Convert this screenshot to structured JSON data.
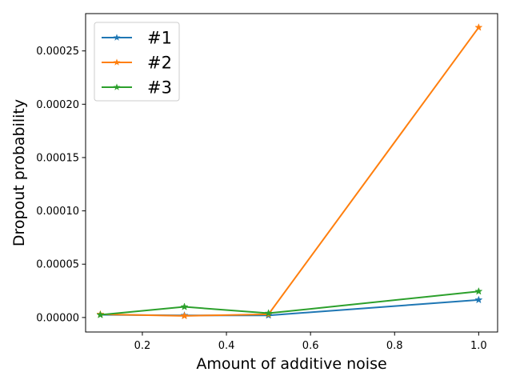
{
  "chart_data": {
    "type": "line",
    "xlabel": "Amount of additive noise",
    "ylabel": "Dropout probability",
    "xlim": [
      0.065,
      1.045
    ],
    "ylim": [
      -1.36e-05,
      0.000285
    ],
    "xticks": [
      0.2,
      0.4,
      0.6,
      0.8,
      1.0
    ],
    "xtick_labels": [
      "0.2",
      "0.4",
      "0.6",
      "0.8",
      "1.0"
    ],
    "yticks": [
      0,
      5e-05,
      0.0001,
      0.00015,
      0.0002,
      0.00025
    ],
    "ytick_labels": [
      "0.00000",
      "0.00005",
      "0.00010",
      "0.00015",
      "0.00020",
      "0.00025"
    ],
    "grid": false,
    "legend_position": "top-left",
    "marker": "star",
    "x": [
      0.1,
      0.3,
      0.5,
      1.0
    ],
    "series": [
      {
        "name": "#1",
        "color": "#1f77b4",
        "values": [
          2.5e-06,
          2e-06,
          2e-06,
          1.65e-05
        ]
      },
      {
        "name": "#2",
        "color": "#ff7f0e",
        "values": [
          3e-06,
          1.5e-06,
          3e-06,
          0.000272
        ]
      },
      {
        "name": "#3",
        "color": "#2ca02c",
        "values": [
          2.5e-06,
          1e-05,
          4e-06,
          2.45e-05
        ]
      }
    ]
  }
}
